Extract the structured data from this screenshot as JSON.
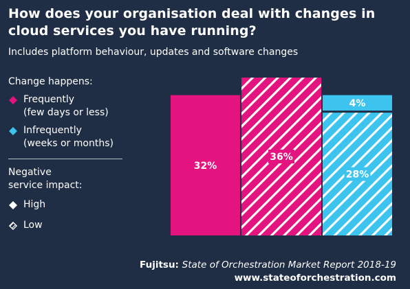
{
  "header": {
    "title": "How does your organisation deal with changes in cloud services you have running?",
    "subtitle": "Includes platform behaviour, updates and software changes"
  },
  "legend": {
    "change_heading": "Change happens:",
    "frequently": "Frequently",
    "frequently_detail": "(few days or less)",
    "infrequently": "Infrequently",
    "infrequently_detail": "(weeks or months)",
    "impact_heading_line1": "Negative",
    "impact_heading_line2": "service impact:",
    "high": "High",
    "low": "Low"
  },
  "footer": {
    "source_prefix": "Fujitsu:",
    "source_title": "State of Orchestration Market Report 2018-19",
    "url": "www.stateoforchestration.com"
  },
  "colors": {
    "background": "#1f2d45",
    "frequently": "#e3147f",
    "infrequently": "#3cc4ef",
    "high_fill": "solid",
    "low_fill": "hatched"
  },
  "chart_data": {
    "type": "bar",
    "stacked": true,
    "title": "How does your organisation deal with changes in cloud services you have running?",
    "subtitle": "Includes platform behaviour, updates and software changes",
    "categories": [
      "",
      "",
      ""
    ],
    "segments": [
      {
        "column": 0,
        "change": "Frequently",
        "impact": "High",
        "value": 32,
        "label": "32%"
      },
      {
        "column": 1,
        "change": "Frequently",
        "impact": "Low",
        "value": 36,
        "label": "36%"
      },
      {
        "column": 2,
        "change": "Infrequently",
        "impact": "Low",
        "value": 28,
        "label": "28%"
      },
      {
        "column": 2,
        "change": "Infrequently",
        "impact": "High",
        "value": 4,
        "label": "4%"
      }
    ],
    "units": "%",
    "grid": false,
    "legend_position": "left"
  }
}
